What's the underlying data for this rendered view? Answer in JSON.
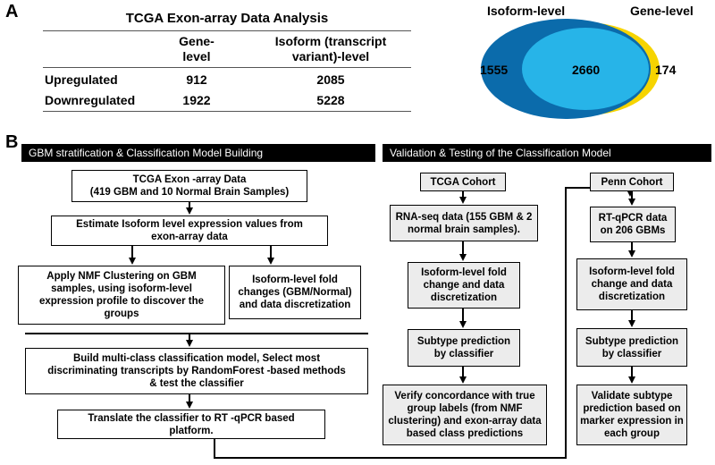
{
  "panel_a": {
    "label": "A",
    "table": {
      "title": "TCGA Exon-array Data Analysis",
      "col_gene_line1": "Gene-",
      "col_gene_line2": "level",
      "col_iso_line1": "Isoform (transcript",
      "col_iso_line2": "variant)-level",
      "rows": [
        {
          "label": "Upregulated",
          "gene": "912",
          "isoform": "2085"
        },
        {
          "label": "Downregulated",
          "gene": "1922",
          "isoform": "5228"
        }
      ]
    },
    "venn": {
      "label_left": "Isoform-level",
      "label_right": "Gene-level",
      "only_isoform": "1555",
      "overlap": "2660",
      "only_gene": "174",
      "colors": {
        "isoform": "#0b6bab",
        "overlap": "#27b4e8",
        "gene": "#f6d400"
      }
    }
  },
  "panel_b": {
    "label": "B",
    "left_header": "GBM stratification & Classification Model Building",
    "right_header": "Validation & Testing of the Classification Model",
    "left_boxes": {
      "data_l1": "TCGA Exon -array Data",
      "data_l2": "(419 GBM and 10 Normal Brain Samples)",
      "estimate_l1": "Estimate Isoform level expression values from",
      "estimate_l2": "exon-array data",
      "nmf_l1": "Apply NMF Clustering on GBM",
      "nmf_l2": "samples, using isoform-level",
      "nmf_l3": "expression profile to discover the",
      "nmf_l4": "groups",
      "fold_l1": "Isoform-level fold",
      "fold_l2": "changes (GBM/Normal)",
      "fold_l3": "and data discretization",
      "build_l1": "Build multi-class classification model, Select most",
      "build_l2": "discriminating transcripts  by RandomForest -based methods",
      "build_l3": "& test the classifier",
      "translate_l1": "Translate the classifier to RT -qPCR  based",
      "translate_l2": "platform."
    },
    "tcga_col": {
      "title": "TCGA Cohort",
      "rnaseq_l1": "RNA-seq data (155 GBM & 2",
      "rnaseq_l2": "normal brain  samples).",
      "fold_l1": "Isoform-level fold",
      "fold_l2": "change and data",
      "fold_l3": "discretization",
      "subtype_l1": "Subtype prediction",
      "subtype_l2": "by classifier",
      "verify_l1": "Verify concordance with true",
      "verify_l2": "group labels (from NMF",
      "verify_l3": "clustering) and exon-array data",
      "verify_l4": "based class predictions"
    },
    "penn_col": {
      "title": "Penn Cohort",
      "rtqpcr_l1": "RT-qPCR  data",
      "rtqpcr_l2": "on 206 GBMs",
      "fold_l1": "Isoform-level fold",
      "fold_l2": "change and data",
      "fold_l3": "discretization",
      "subtype_l1": "Subtype  prediction",
      "subtype_l2": "by classifier",
      "validate_l1": "Validate subtype",
      "validate_l2": "prediction based on",
      "validate_l3": "marker expression in",
      "validate_l4": "each group"
    }
  }
}
